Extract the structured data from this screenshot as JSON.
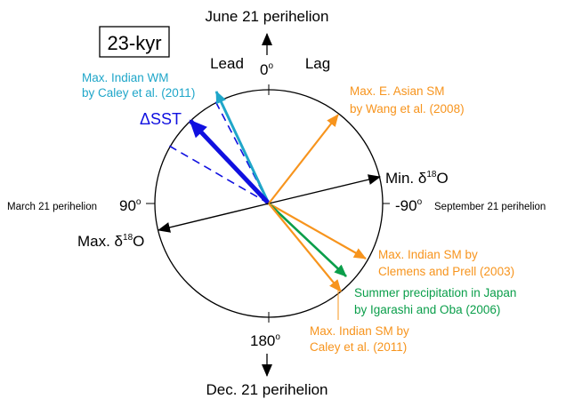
{
  "title": "23-kyr",
  "axis": {
    "top": "June 21 perihelion",
    "top_angle": {
      "text": "0",
      "sup": "o"
    },
    "lead": "Lead",
    "lag": "Lag",
    "left": "March 21 perihelion",
    "left_angle": {
      "text": "90",
      "sup": "o"
    },
    "right_angle": {
      "text": "-90",
      "sup": "o"
    },
    "right": "September 21 perihelion",
    "bottom_angle": {
      "text": "180",
      "sup": "o"
    },
    "bottom": "Dec. 21 perihelion"
  },
  "labels": {
    "indian_wm": [
      "Max. Indian WM",
      "by Caley et al. (2011)"
    ],
    "sst": "ΔSST",
    "east_asian": [
      "Max. E. Asian SM",
      "by Wang et al. (2008)"
    ],
    "min_d18o": {
      "prefix": "Min. δ",
      "sup": "18",
      "suffix": "O"
    },
    "max_d18o": {
      "prefix": "Max. δ",
      "sup": "18",
      "suffix": "O"
    },
    "clemens": [
      "Max. Indian SM by",
      "Clemens and Prell (2003)"
    ],
    "japan": [
      "Summer precipitation in Japan",
      "by Igarashi and Oba (2006)"
    ],
    "caley_sm": [
      "Max. Indian SM by",
      "Caley et al. (2011)"
    ]
  }
}
